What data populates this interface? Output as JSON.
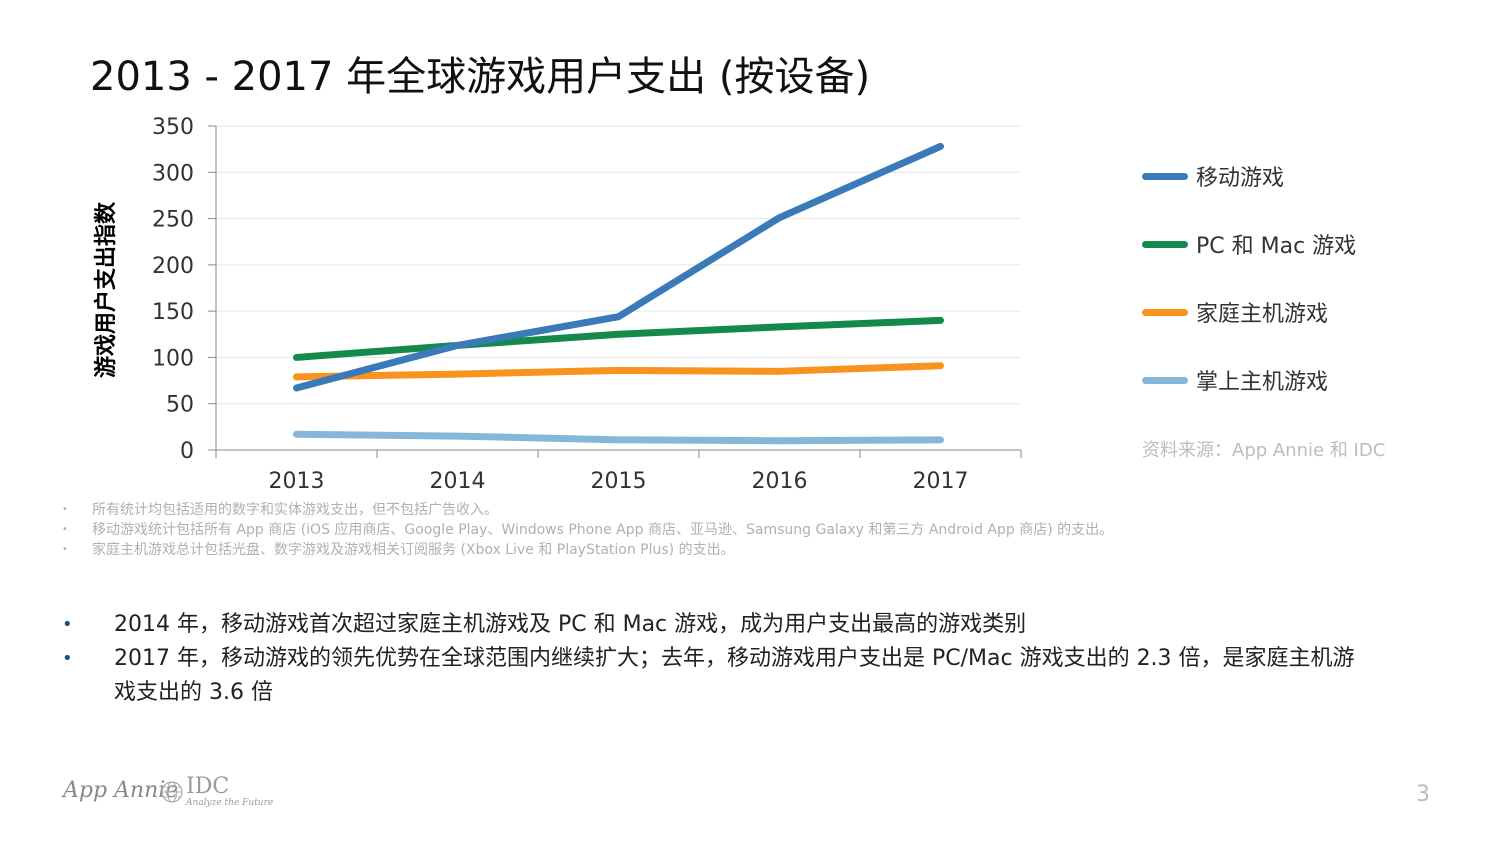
{
  "title": "2013 - 2017 年全球游戏用户支出 (按设备)",
  "chart_data": {
    "type": "line",
    "ylabel": "游戏用户支出指数",
    "xlabel": "",
    "categories": [
      "2013",
      "2014",
      "2015",
      "2016",
      "2017"
    ],
    "ylim": [
      0,
      350
    ],
    "yticks": [
      0,
      50,
      100,
      150,
      200,
      250,
      300,
      350
    ],
    "grid": true,
    "legend_position": "right",
    "series": [
      {
        "name": "移动游戏",
        "color": "#3a7ab8",
        "values": [
          67,
          113,
          144,
          251,
          328
        ]
      },
      {
        "name": "PC 和 Mac 游戏",
        "color": "#138a4b",
        "values": [
          100,
          113,
          125,
          133,
          140
        ]
      },
      {
        "name": "家庭主机游戏",
        "color": "#f7931e",
        "values": [
          79,
          82,
          86,
          85,
          91
        ]
      },
      {
        "name": "掌上主机游戏",
        "color": "#86b7da",
        "values": [
          17,
          15,
          11,
          10,
          11
        ]
      }
    ]
  },
  "source": "资料来源：App Annie 和 IDC",
  "notes": [
    "所有统计均包括适用的数字和实体游戏支出，但不包括广告收入。",
    "移动游戏统计包括所有 App 商店 (iOS 应用商店、Google Play、Windows Phone App 商店、亚马逊、Samsung Galaxy 和第三方 Android App 商店) 的支出。",
    "家庭主机游戏总计包括光盘、数字游戏及游戏相关订阅服务 (Xbox Live 和 PlayStation Plus) 的支出。"
  ],
  "key_points": [
    "2014 年，移动游戏首次超过家庭主机游戏及 PC 和 Mac 游戏，成为用户支出最高的游戏类别",
    "2017 年，移动游戏的领先优势在全球范围内继续扩大；去年，移动游戏用户支出是 PC/Mac 游戏支出的 2.3 倍，是家庭主机游戏支出的 3.6 倍"
  ],
  "footer": {
    "app_annie_logo": "App Annie",
    "idc_logo": "IDC",
    "idc_tagline": "Analyze the Future",
    "page_number": "3"
  }
}
